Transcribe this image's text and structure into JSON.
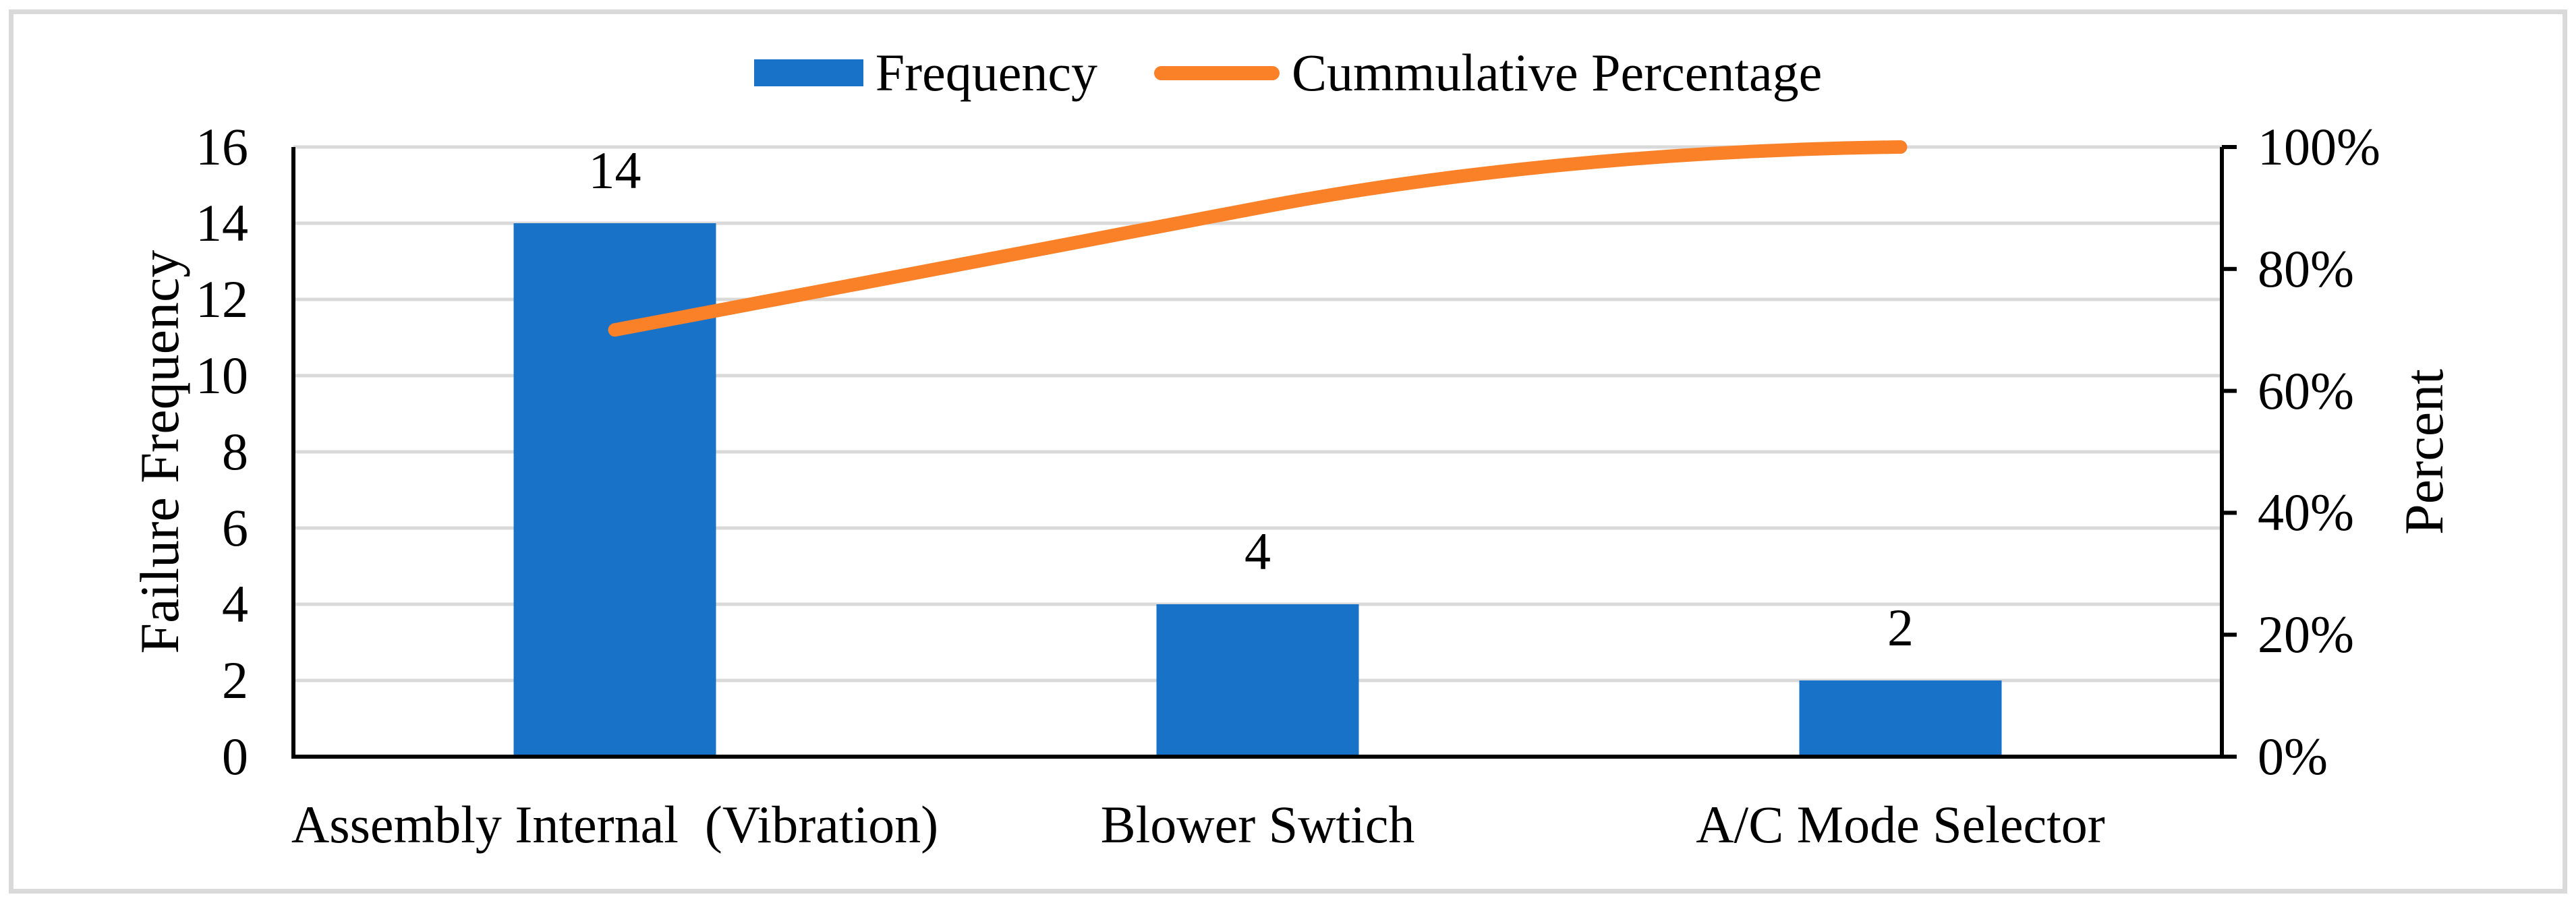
{
  "figure": {
    "background": "#FFFFFF",
    "frame_color": "#D9D9D9",
    "gridline_color": "#D9D9D9",
    "axis_line_color": "#000000"
  },
  "legend": {
    "position": "top-center",
    "items": [
      {
        "label": "Frequency",
        "swatch": "bar",
        "color": "#1772C8"
      },
      {
        "label": "Cummulative Percentage",
        "swatch": "line",
        "color": "#FA8128"
      }
    ]
  },
  "chart_data": {
    "type": "bar",
    "subtype": "pareto-combo-bar-line",
    "categories": [
      "Assembly Internal  (Vibration)",
      "Blower Swtich",
      "A/C Mode Selector"
    ],
    "series": [
      {
        "name": "Frequency",
        "type": "bar",
        "axis": "left",
        "color": "#1772C8",
        "values": [
          14,
          4,
          2
        ],
        "data_labels": [
          "14",
          "4",
          "2"
        ]
      },
      {
        "name": "Cummulative Percentage",
        "type": "line",
        "axis": "right",
        "color": "#FA8128",
        "values_percent": [
          70,
          90,
          100
        ],
        "smoothed": true
      }
    ],
    "left_axis": {
      "title": "Failure Frequency",
      "min": 0,
      "max": 16,
      "tick_step": 2,
      "ticks": [
        "0",
        "2",
        "4",
        "6",
        "8",
        "10",
        "12",
        "14",
        "16"
      ]
    },
    "right_axis": {
      "title": "Percent",
      "min": 0,
      "max": 100,
      "tick_step": 20,
      "ticks": [
        "0%",
        "20%",
        "40%",
        "60%",
        "80%",
        "100%"
      ]
    },
    "grid": true,
    "legend_position": "top"
  }
}
